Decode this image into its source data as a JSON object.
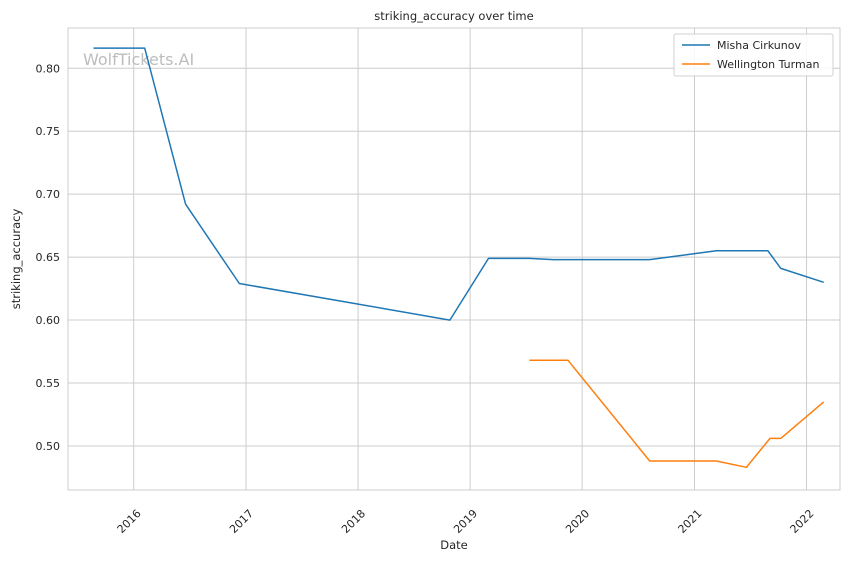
{
  "chart_data": {
    "type": "line",
    "title": "striking_accuracy over time",
    "xlabel": "Date",
    "ylabel": "striking_accuracy",
    "watermark": "WolfTickets.AI",
    "x_ticks": [
      "2016",
      "2017",
      "2018",
      "2019",
      "2020",
      "2021",
      "2022"
    ],
    "y_ticks": [
      "0.50",
      "0.55",
      "0.60",
      "0.65",
      "0.70",
      "0.75",
      "0.80"
    ],
    "xlim": [
      "2015-06-01",
      "2022-04-20"
    ],
    "ylim": [
      0.465,
      0.832
    ],
    "grid": true,
    "legend_position": "top-right",
    "series": [
      {
        "name": "Misha Cirkunov",
        "color": "#1f77b4",
        "x": [
          "2015-08-23",
          "2016-02-06",
          "2016-06-18",
          "2016-12-10",
          "2018-10-27",
          "2019-03-02",
          "2019-07-13",
          "2019-09-28",
          "2020-08-08",
          "2021-03-13",
          "2021-08-28",
          "2021-10-09",
          "2022-02-26"
        ],
        "y": [
          0.816,
          0.816,
          0.692,
          0.629,
          0.6,
          0.649,
          0.649,
          0.648,
          0.648,
          0.655,
          0.655,
          0.641,
          0.63
        ]
      },
      {
        "name": "Wellington Turman",
        "color": "#ff7f0e",
        "x": [
          "2019-07-13",
          "2019-11-16",
          "2020-08-08",
          "2021-03-13",
          "2021-06-19",
          "2021-09-04",
          "2021-10-09",
          "2022-02-26"
        ],
        "y": [
          0.568,
          0.568,
          0.488,
          0.488,
          0.483,
          0.506,
          0.506,
          0.535
        ]
      }
    ]
  }
}
